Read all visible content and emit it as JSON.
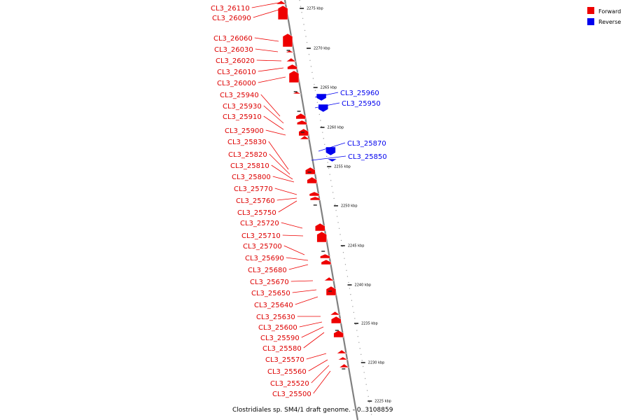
{
  "legend": {
    "forward_label": "Forward",
    "reverse_label": "Reverse",
    "forward_color": "#ee0000",
    "reverse_color": "#0000ee"
  },
  "caption": "Clostridiales sp. SM4/1 draft genome. - 0..3108859",
  "scale_ticks": [
    "2275 kbp",
    "2270 kbp",
    "2265 kbp",
    "2260 kbp",
    "2255 kbp",
    "2250 kbp",
    "2245 kbp",
    "2240 kbp",
    "2235 kbp",
    "2230 kbp",
    "2225 kbp"
  ],
  "genes": [
    {
      "name": "CL3_26110",
      "strand": "forward"
    },
    {
      "name": "CL3_26090",
      "strand": "forward"
    },
    {
      "name": "CL3_26060",
      "strand": "forward"
    },
    {
      "name": "CL3_26030",
      "strand": "forward"
    },
    {
      "name": "CL3_26020",
      "strand": "forward"
    },
    {
      "name": "CL3_26010",
      "strand": "forward"
    },
    {
      "name": "CL3_26000",
      "strand": "forward"
    },
    {
      "name": "CL3_25960",
      "strand": "reverse"
    },
    {
      "name": "CL3_25950",
      "strand": "reverse"
    },
    {
      "name": "CL3_25940",
      "strand": "forward"
    },
    {
      "name": "CL3_25930",
      "strand": "forward"
    },
    {
      "name": "CL3_25910",
      "strand": "forward"
    },
    {
      "name": "CL3_25900",
      "strand": "forward"
    },
    {
      "name": "CL3_25870",
      "strand": "reverse"
    },
    {
      "name": "CL3_25850",
      "strand": "reverse"
    },
    {
      "name": "CL3_25830",
      "strand": "forward"
    },
    {
      "name": "CL3_25820",
      "strand": "forward"
    },
    {
      "name": "CL3_25810",
      "strand": "forward"
    },
    {
      "name": "CL3_25800",
      "strand": "forward"
    },
    {
      "name": "CL3_25770",
      "strand": "forward"
    },
    {
      "name": "CL3_25760",
      "strand": "forward"
    },
    {
      "name": "CL3_25750",
      "strand": "forward"
    },
    {
      "name": "CL3_25720",
      "strand": "forward"
    },
    {
      "name": "CL3_25710",
      "strand": "forward"
    },
    {
      "name": "CL3_25700",
      "strand": "forward"
    },
    {
      "name": "CL3_25690",
      "strand": "forward"
    },
    {
      "name": "CL3_25680",
      "strand": "forward"
    },
    {
      "name": "CL3_25670",
      "strand": "forward"
    },
    {
      "name": "CL3_25650",
      "strand": "forward"
    },
    {
      "name": "CL3_25640",
      "strand": "forward"
    },
    {
      "name": "CL3_25630",
      "strand": "forward"
    },
    {
      "name": "CL3_25600",
      "strand": "forward"
    },
    {
      "name": "CL3_25590",
      "strand": "forward"
    },
    {
      "name": "CL3_25580",
      "strand": "forward"
    },
    {
      "name": "CL3_25570",
      "strand": "forward"
    },
    {
      "name": "CL3_25560",
      "strand": "forward"
    },
    {
      "name": "CL3_25520",
      "strand": "forward"
    },
    {
      "name": "CL3_25500",
      "strand": "forward"
    }
  ]
}
